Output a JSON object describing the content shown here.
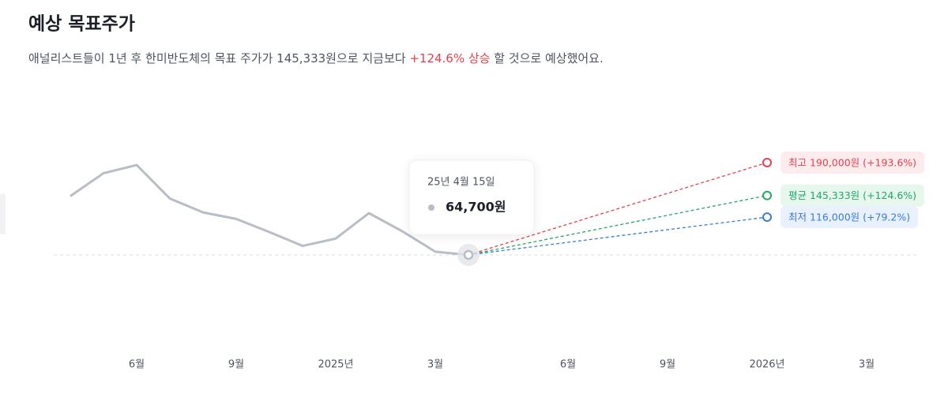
{
  "header": {
    "title": "예상 목표주가",
    "subtitle": [
      "애널리스트들이 1년 후 한미반도체의 목표 주가가 145,333원으로 지금보다 ",
      "+124.6% 상승",
      " 할 것으로 예상했어요."
    ]
  },
  "chart_data": {
    "type": "line",
    "categories": [
      null,
      null,
      "6월",
      null,
      null,
      "9월",
      null,
      null,
      "2025년",
      null,
      null,
      "3월",
      null,
      null,
      "6월",
      null,
      null,
      "9월",
      null,
      null,
      "2026년",
      null,
      null,
      "3월"
    ],
    "ylim": [
      -50000,
      250000
    ],
    "tooltip_date": "25년 4월 15일",
    "series": [
      {
        "name": "주가",
        "color": "#b9bdc5",
        "values": [
          144500,
          175600,
          186700,
          141200,
          122400,
          113500,
          95700,
          76900,
          86900,
          121300,
          96900,
          69100,
          64700,
          null,
          null,
          null,
          null,
          null,
          null,
          null,
          null,
          null,
          null,
          null
        ],
        "value_labels": [
          null,
          null,
          null,
          null,
          null,
          null,
          null,
          null,
          null,
          null,
          null,
          null,
          "64,700원",
          null,
          null,
          null,
          null,
          null,
          null,
          null,
          null,
          null,
          null,
          null
        ]
      },
      {
        "name": "최고",
        "label": "최고 190,000원 (+193.6%)",
        "color": "#e5404f",
        "bg": "#fdeced",
        "forecast": true,
        "values": [
          null,
          null,
          null,
          null,
          null,
          null,
          null,
          null,
          null,
          null,
          null,
          null,
          64700,
          null,
          null,
          null,
          null,
          null,
          null,
          null,
          190000,
          null,
          null,
          null
        ]
      },
      {
        "name": "평균",
        "label": "평균 145,333원 (+124.6%)",
        "color": "#1fa866",
        "bg": "#e8f7ee",
        "forecast": true,
        "values": [
          null,
          null,
          null,
          null,
          null,
          null,
          null,
          null,
          null,
          null,
          null,
          null,
          64700,
          null,
          null,
          null,
          null,
          null,
          null,
          null,
          145333,
          null,
          null,
          null
        ]
      },
      {
        "name": "최저",
        "label": "최저 116,000원 (+79.2%)",
        "color": "#3a7bd5",
        "bg": "#e8f1fd",
        "forecast": true,
        "values": [
          null,
          null,
          null,
          null,
          null,
          null,
          null,
          null,
          null,
          null,
          null,
          null,
          64700,
          null,
          null,
          null,
          null,
          null,
          null,
          null,
          116000,
          null,
          null,
          null
        ]
      }
    ]
  }
}
